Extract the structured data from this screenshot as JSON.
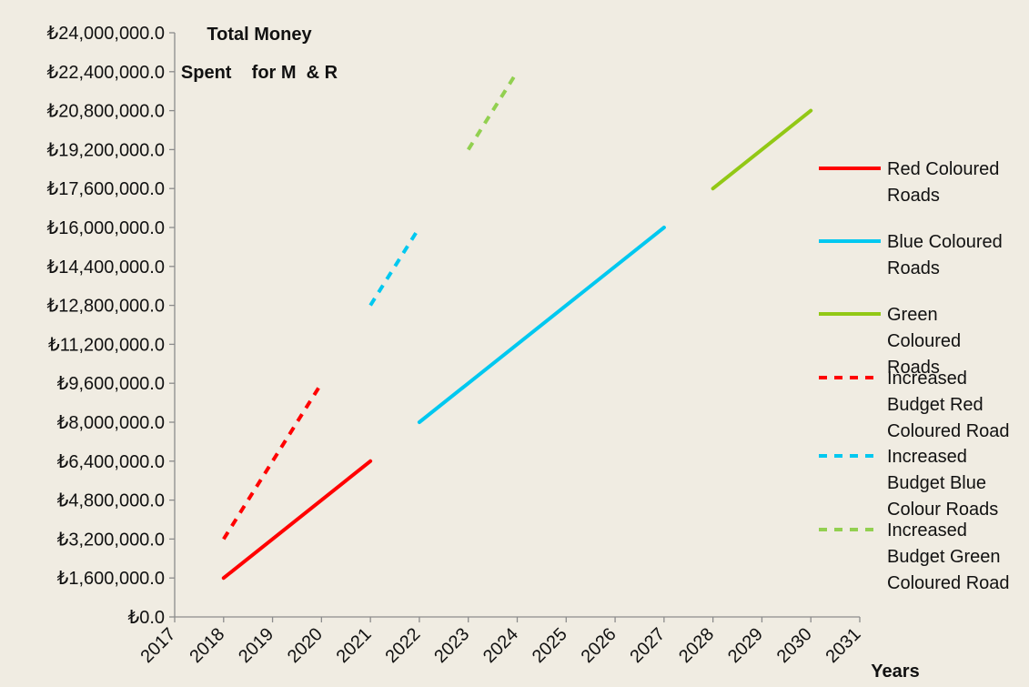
{
  "chart_data": {
    "type": "line",
    "title_lines": [
      "Total Money",
      "Spent    for M  & R"
    ],
    "xlabel": "Years",
    "ylabel": "",
    "xlim": [
      2017,
      2031
    ],
    "ylim": [
      0,
      24000000
    ],
    "x_ticks": [
      2017,
      2018,
      2019,
      2020,
      2021,
      2022,
      2023,
      2024,
      2025,
      2026,
      2027,
      2028,
      2029,
      2030,
      2031
    ],
    "y_ticks": [
      0,
      1600000,
      3200000,
      4800000,
      6400000,
      8000000,
      9600000,
      11200000,
      12800000,
      14400000,
      16000000,
      17600000,
      19200000,
      20800000,
      22400000,
      24000000
    ],
    "y_tick_labels": [
      "₺0.0",
      "₺1,600,000.0",
      "₺3,200,000.0",
      "₺4,800,000.0",
      "₺6,400,000.0",
      "₺8,000,000.0",
      "₺9,600,000.0",
      "₺11,200,000.0",
      "₺12,800,000.0",
      "₺14,400,000.0",
      "₺16,000,000.0",
      "₺17,600,000.0",
      "₺19,200,000.0",
      "₺20,800,000.0",
      "₺22,400,000.0",
      "₺24,000,000.0"
    ],
    "grid": false,
    "legend_position": "right",
    "series": [
      {
        "name": "Red Coloured Roads",
        "legend_lines": [
          "Red Coloured",
          "Roads"
        ],
        "color": "#ff0000",
        "dashed": false,
        "x": [
          2018,
          2021
        ],
        "y": [
          1600000,
          6400000
        ]
      },
      {
        "name": "Blue Coloured Roads",
        "legend_lines": [
          "Blue Coloured",
          "Roads"
        ],
        "color": "#00c8f0",
        "dashed": false,
        "x": [
          2022,
          2027
        ],
        "y": [
          8000000,
          16000000
        ]
      },
      {
        "name": "Green Coloured Roads",
        "legend_lines": [
          "Green",
          "Coloured",
          "Roads"
        ],
        "color": "#92c815",
        "dashed": false,
        "x": [
          2028,
          2030
        ],
        "y": [
          17600000,
          20800000
        ]
      },
      {
        "name": "Increased Budget Red Coloured Road",
        "legend_lines": [
          "Increased",
          "Budget Red",
          "Coloured Road"
        ],
        "color": "#ff0000",
        "dashed": true,
        "x": [
          2018,
          2020
        ],
        "y": [
          3200000,
          9600000
        ]
      },
      {
        "name": "Increased Budget Blue Colour Roads",
        "legend_lines": [
          "Increased",
          "Budget Blue",
          "Colour Roads"
        ],
        "color": "#00c8f0",
        "dashed": true,
        "x": [
          2021,
          2022
        ],
        "y": [
          12800000,
          16000000
        ]
      },
      {
        "name": "Increased Budget Green Coloured Road",
        "legend_lines": [
          "Increased",
          "Budget Green",
          "Coloured Road"
        ],
        "color": "#92d050",
        "dashed": true,
        "x": [
          2023,
          2024
        ],
        "y": [
          19200000,
          22400000
        ]
      }
    ]
  }
}
